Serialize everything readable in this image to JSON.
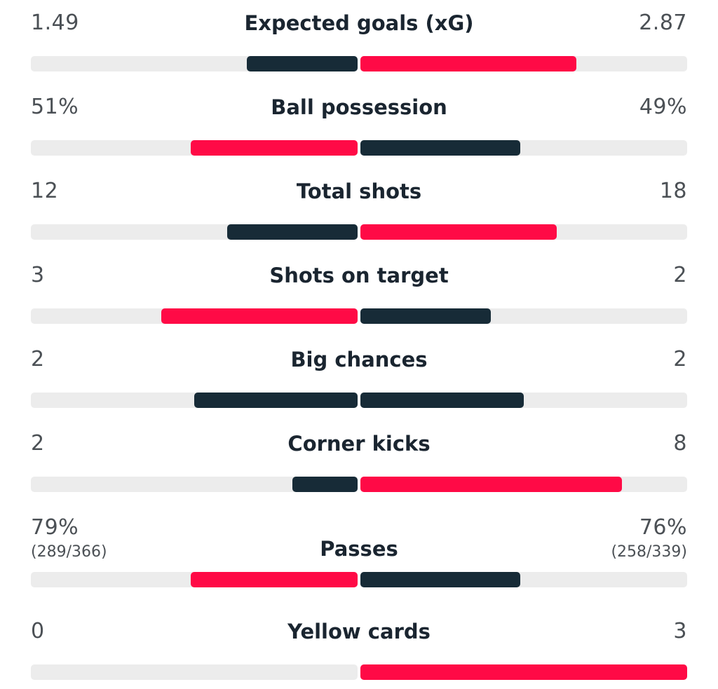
{
  "colors": {
    "dark": "#172b37",
    "red": "#ff0a46",
    "track": "#ececec"
  },
  "stats": [
    {
      "label": "Expected goals (xG)",
      "home": "1.49",
      "away": "2.87",
      "home_frac": 0.34,
      "away_frac": 0.66,
      "home_color": "dark",
      "away_color": "red"
    },
    {
      "label": "Ball possession",
      "home": "51%",
      "away": "49%",
      "home_frac": 0.51,
      "away_frac": 0.49,
      "home_color": "red",
      "away_color": "dark"
    },
    {
      "label": "Total shots",
      "home": "12",
      "away": "18",
      "home_frac": 0.4,
      "away_frac": 0.6,
      "home_color": "dark",
      "away_color": "red"
    },
    {
      "label": "Shots on target",
      "home": "3",
      "away": "2",
      "home_frac": 0.6,
      "away_frac": 0.4,
      "home_color": "red",
      "away_color": "dark"
    },
    {
      "label": "Big chances",
      "home": "2",
      "away": "2",
      "home_frac": 0.5,
      "away_frac": 0.5,
      "home_color": "dark",
      "away_color": "dark"
    },
    {
      "label": "Corner kicks",
      "home": "2",
      "away": "8",
      "home_frac": 0.2,
      "away_frac": 0.8,
      "home_color": "dark",
      "away_color": "red"
    },
    {
      "label": "Passes",
      "home": "79%",
      "away": "76%",
      "home_sub": "(289/366)",
      "away_sub": "(258/339)",
      "home_frac": 0.51,
      "away_frac": 0.49,
      "home_color": "red",
      "away_color": "dark"
    },
    {
      "label": "Yellow cards",
      "home": "0",
      "away": "3",
      "home_frac": 0.0,
      "away_frac": 1.0,
      "home_color": "dark",
      "away_color": "red"
    }
  ]
}
